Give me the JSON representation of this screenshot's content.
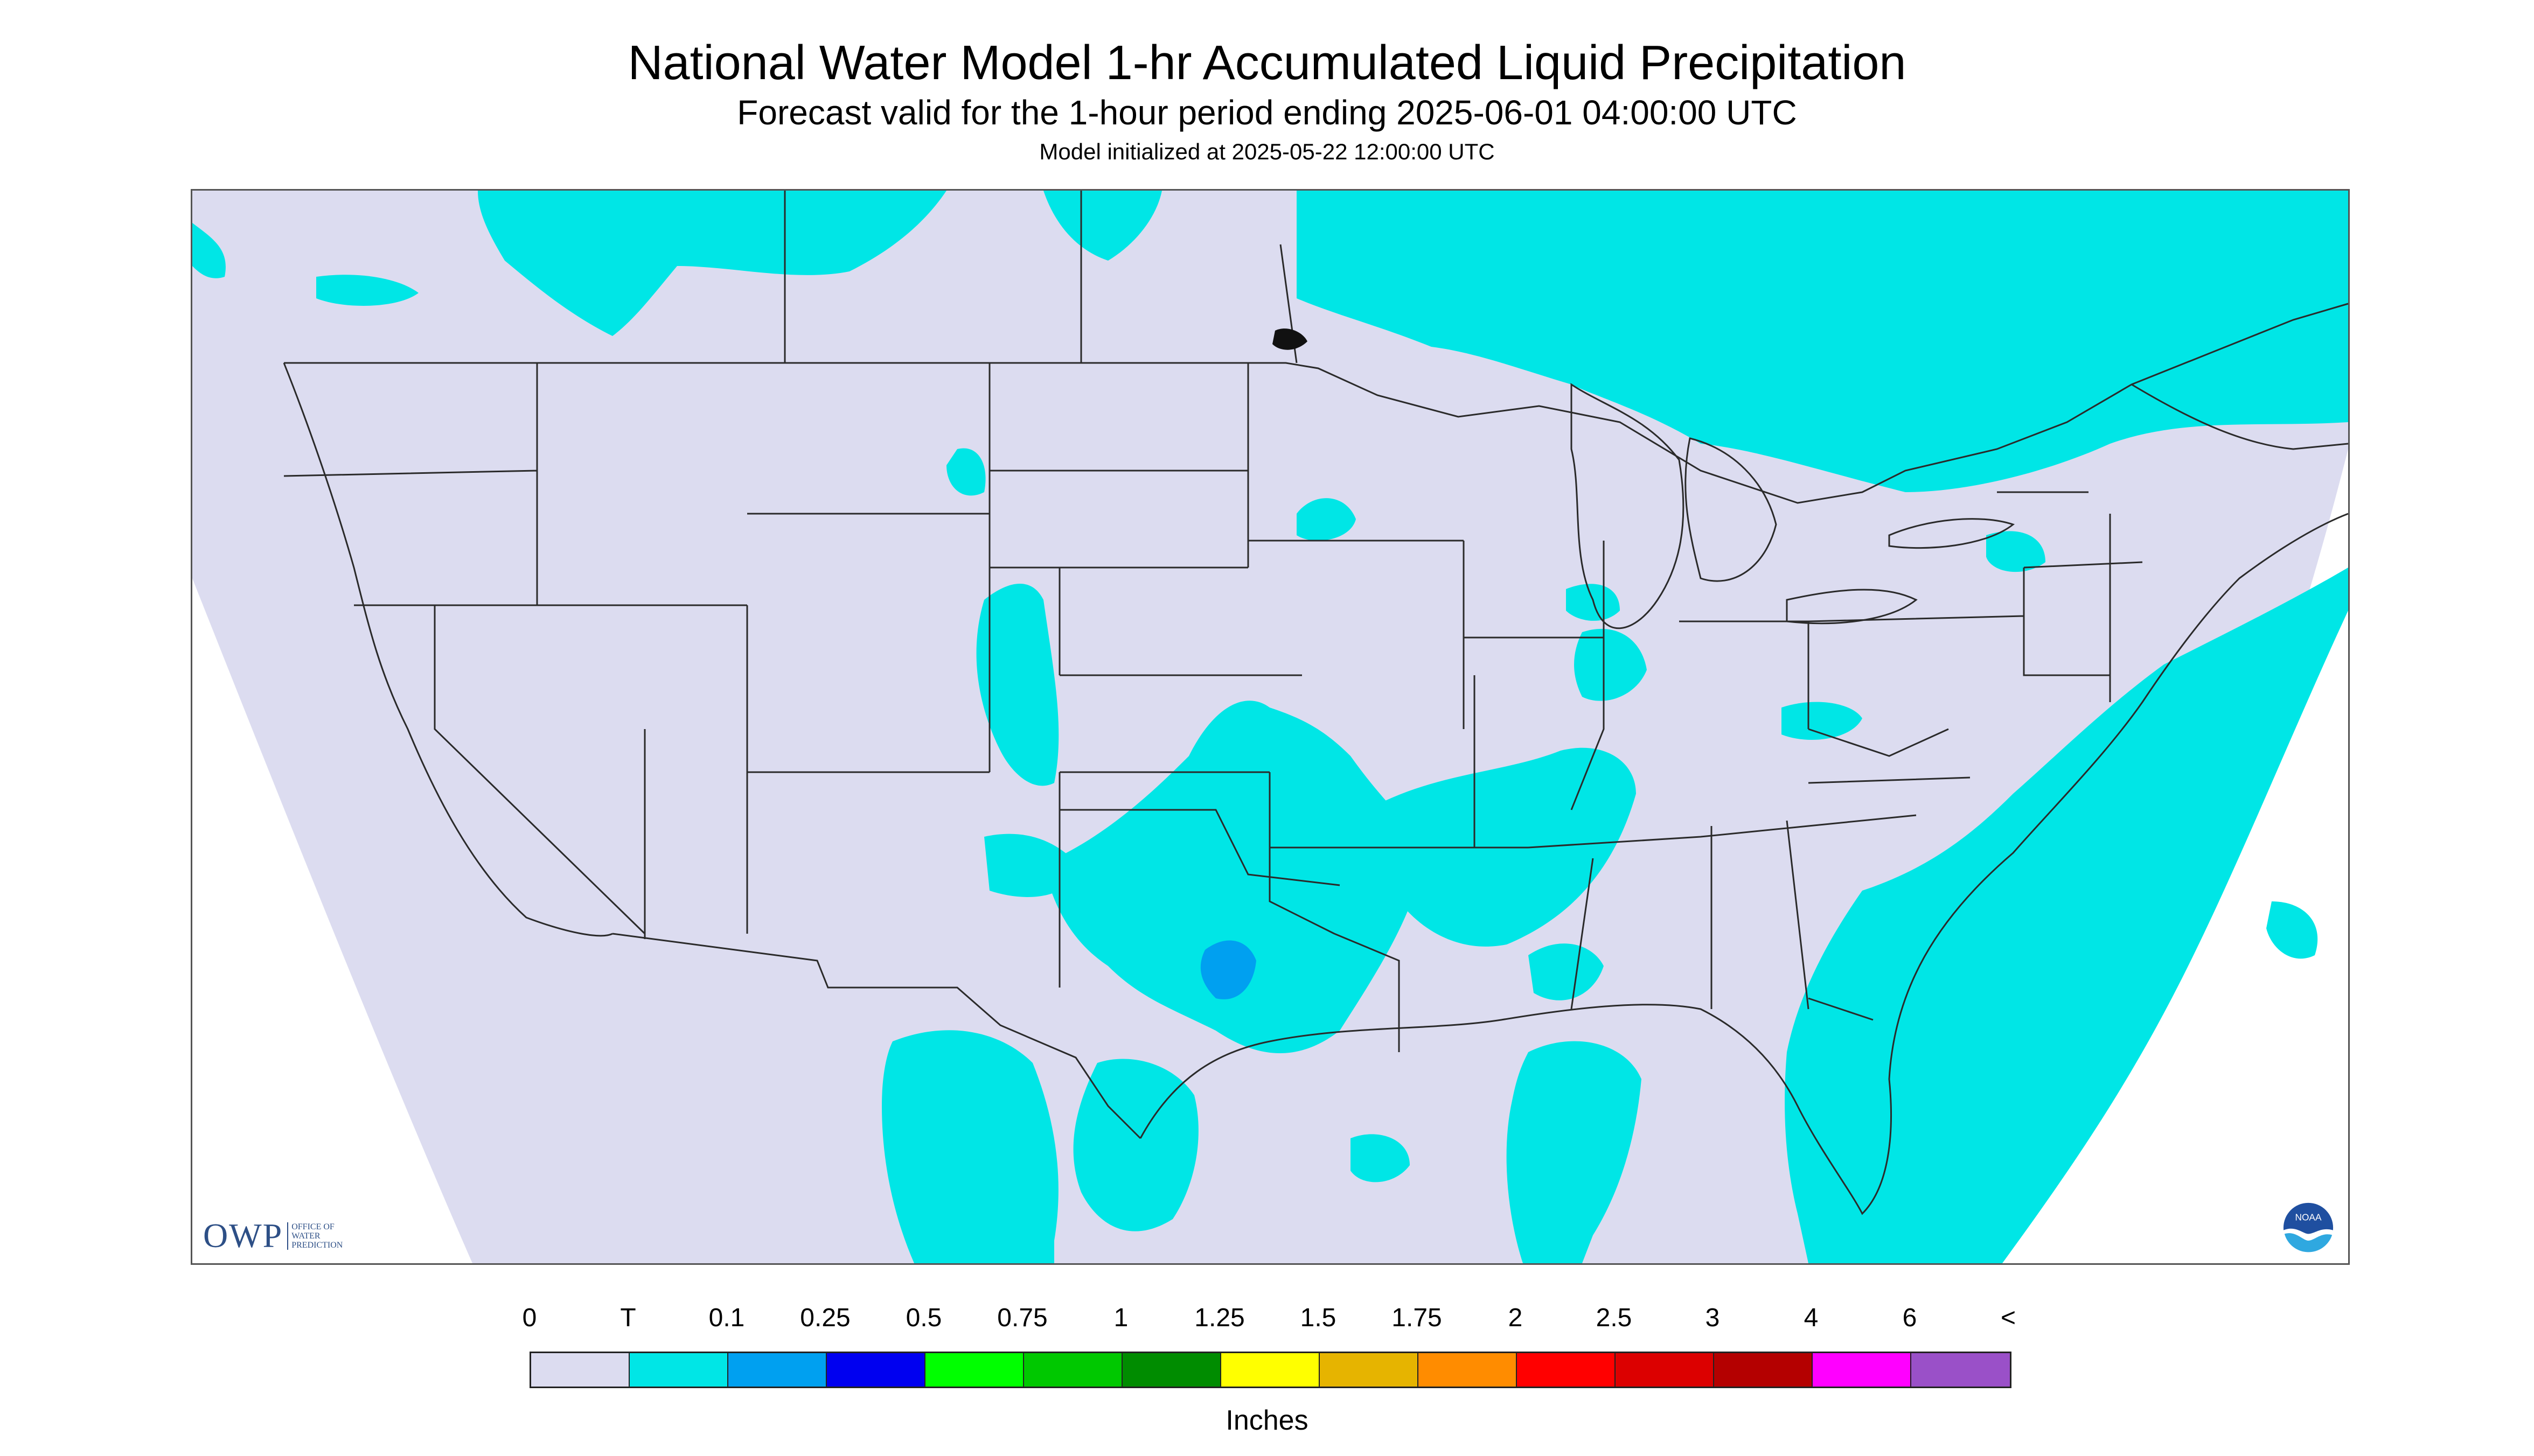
{
  "header": {
    "title": "National Water Model 1-hr Accumulated Liquid Precipitation",
    "subtitle": "Forecast valid for the 1-hour period ending 2025-06-01 04:00:00 UTC",
    "init": "Model initialized at 2025-05-22 12:00:00 UTC"
  },
  "logos": {
    "owp_mark": "OWP",
    "owp_text": [
      "OFFICE OF",
      "WATER",
      "PREDICTION"
    ],
    "noaa_text": "NOAA"
  },
  "colors": {
    "background": "#dcdcf0",
    "trace": "#00e6e6",
    "outside": "#ffffff",
    "boundaries": "#2a2a2a"
  },
  "legend": {
    "labels": [
      "0",
      "T",
      "0.1",
      "0.25",
      "0.5",
      "0.75",
      "1",
      "1.25",
      "1.5",
      "1.75",
      "2",
      "2.5",
      "3",
      "4",
      "6",
      "<"
    ],
    "colors": [
      "#dcdcf0",
      "#00e6e6",
      "#00a0f0",
      "#0000f0",
      "#00ff00",
      "#00c800",
      "#008c00",
      "#ffff00",
      "#e6b400",
      "#ff8c00",
      "#ff0000",
      "#dc0000",
      "#b40000",
      "#ff00ff",
      "#9a50c8"
    ],
    "units": "Inches"
  }
}
